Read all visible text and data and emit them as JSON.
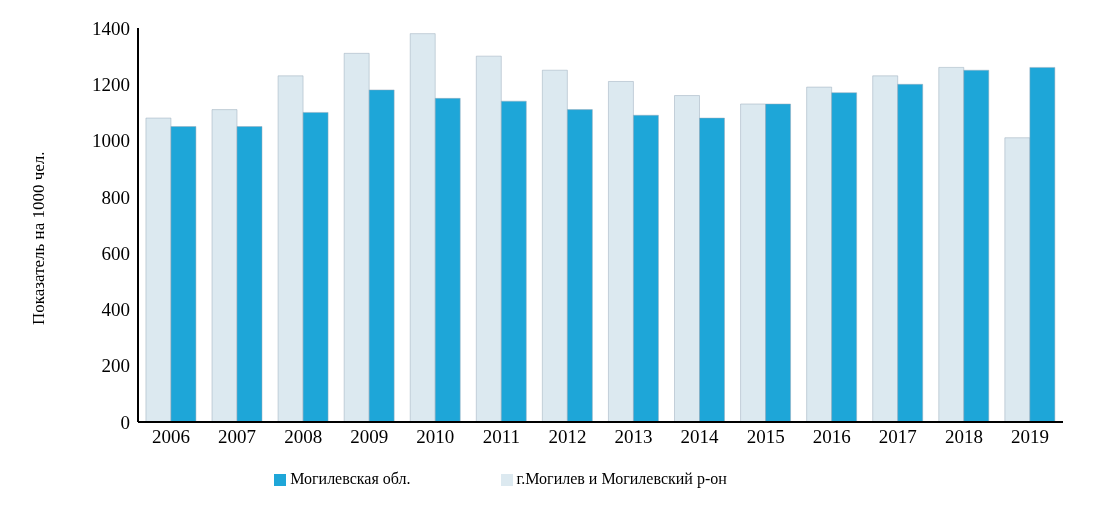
{
  "chart_data": {
    "type": "bar",
    "ylabel": "Показатель на 1000 чел.",
    "categories": [
      "2006",
      "2007",
      "2008",
      "2009",
      "2010",
      "2011",
      "2012",
      "2013",
      "2014",
      "2015",
      "2016",
      "2017",
      "2018",
      "2019"
    ],
    "series": [
      {
        "name": "г.Могилев и Могилевский р-он",
        "color": "#dce9f0",
        "values": [
          1080,
          1110,
          1230,
          1310,
          1380,
          1300,
          1250,
          1210,
          1160,
          1130,
          1190,
          1230,
          1260,
          1010
        ]
      },
      {
        "name": "Могилевская обл.",
        "color": "#1ea6d8",
        "values": [
          1050,
          1050,
          1100,
          1180,
          1150,
          1140,
          1110,
          1090,
          1080,
          1130,
          1170,
          1200,
          1250,
          1260
        ]
      }
    ],
    "ylim": [
      0,
      1400
    ],
    "yticks": [
      0,
      200,
      400,
      600,
      800,
      1000,
      1200,
      1400
    ],
    "grid": false,
    "legend": "bottom"
  }
}
